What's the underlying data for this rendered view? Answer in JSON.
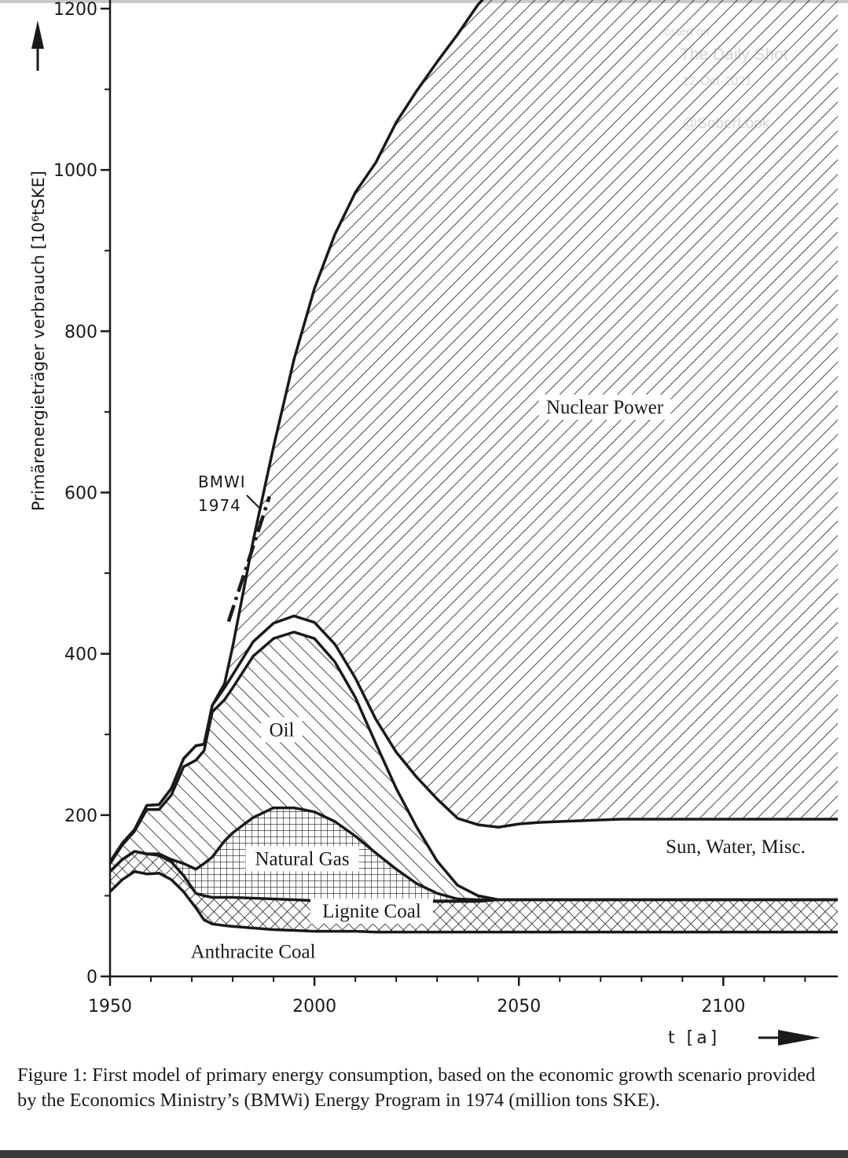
{
  "chart_data": {
    "type": "area",
    "stacked": true,
    "ylabel": "Primärenergieträger verbrauch [10⁶tSKE]",
    "xlabel": "t [a]",
    "xlim": [
      1950,
      2128
    ],
    "ylim": [
      0,
      1200
    ],
    "x_ticks": [
      "1950",
      "2000",
      "2050",
      "2100"
    ],
    "y_ticks": [
      "0",
      "200",
      "400",
      "600",
      "800",
      "1000",
      "1200"
    ],
    "x_minor_ticks": [
      1960,
      1970,
      1980,
      1990,
      2010,
      2020,
      2030,
      2040,
      2060,
      2070,
      2080,
      2090,
      2110,
      2120
    ],
    "y_minor_ticks": [
      100,
      300,
      500,
      700,
      900,
      1100
    ],
    "x": [
      1950,
      1953,
      1956,
      1959,
      1962,
      1965,
      1968,
      1971,
      1973,
      1975,
      1978,
      1980,
      1985,
      1990,
      1995,
      2000,
      2005,
      2010,
      2015,
      2020,
      2025,
      2030,
      2035,
      2040,
      2045,
      2050,
      2055,
      2060,
      2065,
      2070,
      2075,
      2080,
      2085,
      2090,
      2095,
      2100,
      2105,
      2110,
      2115,
      2120,
      2128
    ],
    "series": [
      {
        "name": "Anthracite Coal",
        "values": [
          105,
          120,
          130,
          127,
          128,
          120,
          105,
          85,
          70,
          65,
          63,
          62,
          60,
          58,
          57,
          56,
          56,
          56,
          55,
          55,
          55,
          55,
          55,
          55,
          55,
          55,
          55,
          55,
          55,
          55,
          55,
          55,
          55,
          55,
          55,
          55,
          55,
          55,
          55,
          55,
          55
        ]
      },
      {
        "name": "Lignite Coal",
        "values": [
          25,
          25,
          25,
          25,
          22,
          22,
          20,
          18,
          30,
          33,
          35,
          36,
          37,
          38,
          38,
          38,
          38,
          38,
          38,
          38,
          38,
          38,
          38,
          38,
          40,
          40,
          40,
          40,
          40,
          40,
          40,
          40,
          40,
          40,
          40,
          40,
          40,
          40,
          40,
          40,
          40
        ]
      },
      {
        "name": "Natural Gas",
        "values": [
          0,
          0,
          0,
          0,
          2,
          3,
          15,
          30,
          40,
          50,
          70,
          80,
          100,
          113,
          114,
          110,
          98,
          80,
          60,
          40,
          22,
          10,
          3,
          2,
          0,
          0,
          0,
          0,
          0,
          0,
          0,
          0,
          0,
          0,
          0,
          0,
          0,
          0,
          0,
          0,
          0
        ]
      },
      {
        "name": "Oil",
        "values": [
          10,
          18,
          25,
          55,
          55,
          80,
          120,
          135,
          140,
          180,
          175,
          180,
          200,
          210,
          218,
          215,
          198,
          172,
          136,
          100,
          70,
          40,
          17,
          5,
          0,
          0,
          0,
          0,
          0,
          0,
          0,
          0,
          0,
          0,
          0,
          0,
          0,
          0,
          0,
          0,
          0
        ]
      },
      {
        "name": "Sun, Water, Misc.",
        "values": [
          2,
          2,
          2,
          5,
          6,
          8,
          10,
          18,
          8,
          8,
          15,
          16,
          18,
          19,
          20,
          20,
          22,
          24,
          30,
          45,
          62,
          77,
          83,
          88,
          90,
          94,
          96,
          97,
          98,
          99,
          100,
          100,
          100,
          100,
          100,
          100,
          100,
          100,
          100,
          100,
          100
        ]
      },
      {
        "name": "Nuclear Power",
        "values": [
          0,
          0,
          0,
          0,
          0,
          0,
          0,
          0,
          0,
          0,
          5,
          35,
          125,
          219,
          318,
          414,
          508,
          602,
          690,
          781,
          851,
          914,
          972,
          1017,
          1047,
          1070,
          1080,
          1088,
          1094,
          1097,
          1100,
          1100,
          1100,
          1100,
          1100,
          1100,
          1100,
          1100,
          1100,
          1100,
          1100
        ]
      }
    ],
    "series_hatch": [
      "none",
      "crosshatch",
      "grid",
      "backslash",
      "none",
      "slash"
    ],
    "label_anchors": {
      "Anthracite Coal": [
        1985,
        25
      ],
      "Lignite Coal": [
        2014,
        75
      ],
      "Natural Gas": [
        1997,
        140
      ],
      "Oil": [
        1992,
        300
      ],
      "Sun, Water, Misc.": [
        2103,
        155
      ],
      "Nuclear Power": [
        2071,
        700
      ]
    },
    "annotation": {
      "text_lines": [
        "BMWI",
        "1974"
      ],
      "projection_x": [
        1979,
        1989
      ],
      "projection_y": [
        440,
        595
      ]
    },
    "watermark": [
      "osted on",
      "The Daily Shot",
      "12-Oct-2021",
      "@SoberLook"
    ]
  },
  "caption": "Figure 1: First model of primary energy consumption, based on the economic growth scenario provided by the Economics Ministry’s (BMWi) Energy Program in 1974 (million tons SKE).",
  "colors": {
    "ink": "#1a1a1a",
    "background": "#ffffff"
  }
}
